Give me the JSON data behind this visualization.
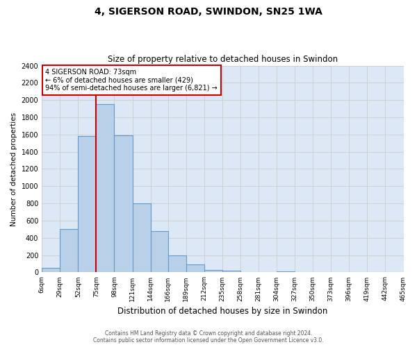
{
  "title": "4, SIGERSON ROAD, SWINDON, SN25 1WA",
  "subtitle": "Size of property relative to detached houses in Swindon",
  "xlabel": "Distribution of detached houses by size in Swindon",
  "ylabel": "Number of detached properties",
  "bin_labels": [
    "6sqm",
    "29sqm",
    "52sqm",
    "75sqm",
    "98sqm",
    "121sqm",
    "144sqm",
    "166sqm",
    "189sqm",
    "212sqm",
    "235sqm",
    "258sqm",
    "281sqm",
    "304sqm",
    "327sqm",
    "350sqm",
    "373sqm",
    "396sqm",
    "419sqm",
    "442sqm",
    "465sqm"
  ],
  "bar_heights": [
    50,
    500,
    1580,
    1950,
    1590,
    800,
    480,
    195,
    90,
    30,
    20,
    0,
    0,
    15,
    0,
    0,
    0,
    0,
    0,
    0
  ],
  "bar_color": "#b8d0e8",
  "bar_edge_color": "#6699cc",
  "vline_x_index": 3,
  "vline_color": "#cc0000",
  "ylim": [
    0,
    2400
  ],
  "yticks": [
    0,
    200,
    400,
    600,
    800,
    1000,
    1200,
    1400,
    1600,
    1800,
    2000,
    2200,
    2400
  ],
  "annotation_title": "4 SIGERSON ROAD: 73sqm",
  "annotation_line1": "← 6% of detached houses are smaller (429)",
  "annotation_line2": "94% of semi-detached houses are larger (6,821) →",
  "annotation_box_color": "#ffffff",
  "annotation_border_color": "#cc0000",
  "footer_line1": "Contains HM Land Registry data © Crown copyright and database right 2024.",
  "footer_line2": "Contains public sector information licensed under the Open Government Licence v3.0.",
  "background_color": "#ffffff",
  "grid_color": "#cccccc",
  "axes_bg_color": "#dce8f5"
}
